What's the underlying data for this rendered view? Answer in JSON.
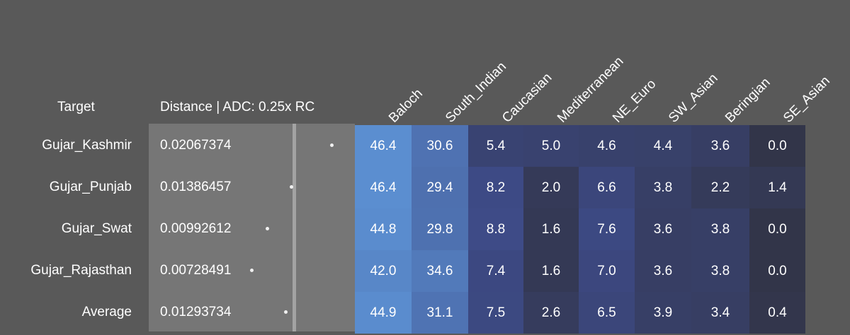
{
  "headers": {
    "target": "Target",
    "distance": "Distance | ADC: 0.25x RC"
  },
  "chart_data": {
    "type": "heatmap",
    "columns": [
      "Baloch",
      "South_Indian",
      "Caucasian",
      "Mediterranean",
      "NE_Euro",
      "SW_Asian",
      "Beringian",
      "SE_Asian"
    ],
    "rows": [
      {
        "target": "Gujar_Kashmir",
        "distance": "0.02067374",
        "distance_value": 0.02067374,
        "values": [
          "46.4",
          "30.6",
          "5.4",
          "5.0",
          "4.6",
          "4.4",
          "3.6",
          "0.0"
        ]
      },
      {
        "target": "Gujar_Punjab",
        "distance": "0.01386457",
        "distance_value": 0.01386457,
        "values": [
          "46.4",
          "29.4",
          "8.2",
          "2.0",
          "6.6",
          "3.8",
          "2.2",
          "1.4"
        ]
      },
      {
        "target": "Gujar_Swat",
        "distance": "0.00992612",
        "distance_value": 0.00992612,
        "values": [
          "44.8",
          "29.8",
          "8.8",
          "1.6",
          "7.6",
          "3.6",
          "3.8",
          "0.0"
        ]
      },
      {
        "target": "Gujar_Rajasthan",
        "distance": "0.00728491",
        "distance_value": 0.00728491,
        "values": [
          "42.0",
          "34.6",
          "7.4",
          "1.6",
          "7.0",
          "3.6",
          "3.8",
          "0.0"
        ]
      },
      {
        "target": "Average",
        "distance": "0.01293734",
        "distance_value": 0.01293734,
        "values": [
          "44.9",
          "31.1",
          "7.5",
          "2.6",
          "6.5",
          "3.9",
          "3.4",
          "0.4"
        ]
      }
    ],
    "colors": {
      "background": "#595959",
      "distance_panel": "#767676",
      "low": "#323549",
      "mid": "#3d4a85",
      "high": "#5b8ed0"
    }
  }
}
